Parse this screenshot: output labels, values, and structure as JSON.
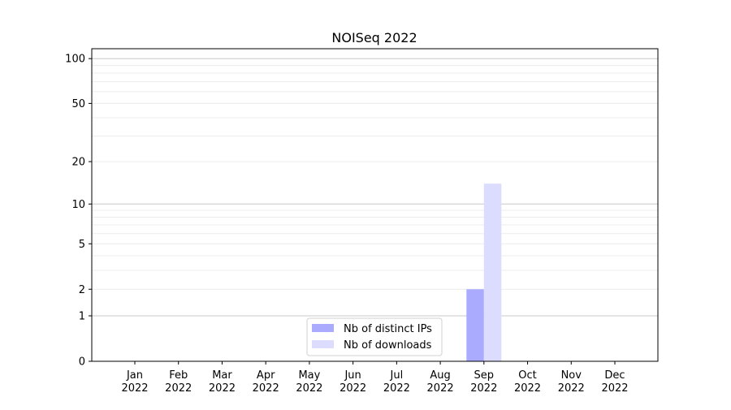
{
  "chart_data": {
    "type": "bar",
    "title": "NOISeq 2022",
    "xlabel": "",
    "ylabel": "",
    "yscale": "log(1+y)",
    "ylim": [
      0,
      117
    ],
    "yticks": [
      0,
      1,
      2,
      5,
      10,
      20,
      50,
      100
    ],
    "ytick_labels": [
      "0",
      "1",
      "2",
      "5",
      "10",
      "20",
      "50",
      "100"
    ],
    "grid": true,
    "legend_position": "lower-center",
    "categories": [
      "Jan\n2022",
      "Feb\n2022",
      "Mar\n2022",
      "Apr\n2022",
      "May\n2022",
      "Jun\n2022",
      "Jul\n2022",
      "Aug\n2022",
      "Sep\n2022",
      "Oct\n2022",
      "Nov\n2022",
      "Dec\n2022"
    ],
    "series": [
      {
        "name": "Nb of distinct IPs",
        "color": "#aaaafe",
        "values": [
          0,
          0,
          0,
          0,
          0,
          0,
          0,
          0,
          2,
          0,
          0,
          0
        ]
      },
      {
        "name": "Nb of downloads",
        "color": "#dcdcfe",
        "values": [
          0,
          0,
          0,
          0,
          0,
          0,
          0,
          0,
          14,
          0,
          0,
          0
        ]
      }
    ]
  }
}
